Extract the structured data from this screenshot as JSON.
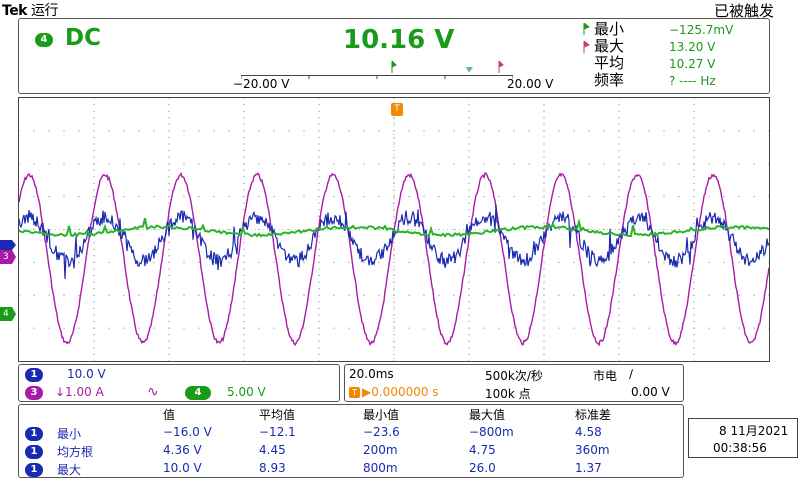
{
  "header": {
    "brand": "Tek",
    "run_state": "运行",
    "trigger_status": "已被触发"
  },
  "top_panel": {
    "channel_badge": "4",
    "coupling": "DC",
    "value": "10.16 V",
    "ruler_left": "−20.00 V",
    "ruler_right": "20.00 V",
    "measurements": [
      {
        "label": "最小",
        "value": "−125.7mV"
      },
      {
        "label": "最大",
        "value": "13.20 V"
      },
      {
        "label": "平均",
        "value": "10.27 V"
      },
      {
        "label": "频率",
        "value": "? ---- Hz"
      }
    ]
  },
  "graticule": {
    "trigger_marker": "T",
    "markers": [
      {
        "ch": "3",
        "color": "#a81ba8"
      },
      {
        "ch": "4",
        "color": "#1a9b1a"
      }
    ],
    "channel_colors": {
      "ch1": "#1a2ab0",
      "ch3": "#a81ba8",
      "ch4": "#1a9b1a"
    }
  },
  "channels": {
    "ch1": {
      "badge": "1",
      "scale": "10.0 V"
    },
    "ch3": {
      "badge": "3",
      "scale": "↓1.00 A",
      "symbol": "∿"
    },
    "ch4": {
      "badge": "4",
      "scale": "5.00 V"
    }
  },
  "timebase": {
    "time_div": "20.0ms",
    "sample_rate": "500k次/秒",
    "trigger_source": "市电",
    "trigger_slope": "∕",
    "trigger_pos": "▶0.000000 s",
    "record_length": "100k 点",
    "trigger_level": "0.00 V"
  },
  "stats": {
    "headers": [
      "值",
      "平均值",
      "最小值",
      "最大值",
      "标准差"
    ],
    "rows": [
      {
        "ch": "1",
        "name": "最小",
        "vals": [
          "−16.0 V",
          "−12.1",
          "−23.6",
          "−800m",
          "4.58"
        ]
      },
      {
        "ch": "1",
        "name": "均方根",
        "vals": [
          "4.36 V",
          "4.45",
          "200m",
          "4.75",
          "360m"
        ]
      },
      {
        "ch": "1",
        "name": "最大",
        "vals": [
          "10.0 V",
          "8.93",
          "800m",
          "26.0",
          "1.37"
        ]
      }
    ]
  },
  "datetime": {
    "date": "8 11月2021",
    "time": "00:38:56"
  }
}
